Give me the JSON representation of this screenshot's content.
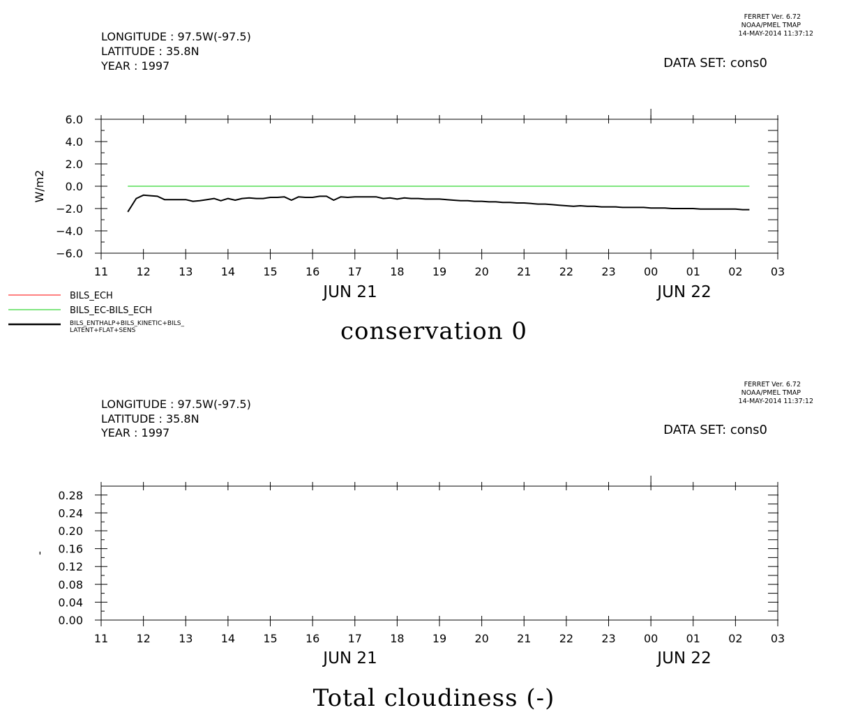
{
  "ferret": {
    "line1": "FERRET Ver. 6.72",
    "line2": "NOAA/PMEL TMAP",
    "line3": "14-MAY-2014 11:37:12"
  },
  "panels": [
    {
      "longitude": "LONGITUDE : 97.5W(-97.5)",
      "latitude": "LATITUDE : 35.8N",
      "year": "YEAR : 1997",
      "dataset": "DATA SET: cons0",
      "title": "conservation 0"
    },
    {
      "longitude": "LONGITUDE : 97.5W(-97.5)",
      "latitude": "LATITUDE : 35.8N",
      "year": "YEAR : 1997",
      "dataset": "DATA SET: cons0",
      "title": "Total cloudiness (-)"
    }
  ],
  "legend": [
    {
      "label": "BILS_ECH",
      "color": "#ff0000"
    },
    {
      "label": "BILS_EC-BILS_ECH",
      "color": "#00cc00"
    },
    {
      "label": "BILS_ENTHALP+BILS_KINETIC+BILS_",
      "label2": "LATENT+FLAT+SENS",
      "color": "#000000"
    }
  ],
  "chart_data": [
    {
      "type": "line",
      "title": "conservation 0",
      "xlabel": "",
      "ylabel": "W/m2",
      "x_unit": "hour of JUN 21 1997 (continuing into JUN 22)",
      "xlim": [
        11,
        27
      ],
      "x_ticks": [
        "11",
        "12",
        "13",
        "14",
        "15",
        "16",
        "17",
        "18",
        "19",
        "20",
        "21",
        "22",
        "23",
        "00",
        "01",
        "02",
        "03"
      ],
      "date_labels": [
        {
          "text": "JUN 21",
          "at": 17
        },
        {
          "text": "JUN 22",
          "at": 25
        }
      ],
      "ylim": [
        -6,
        6
      ],
      "y_ticks": [
        "6.0",
        "4.0",
        "2.0",
        "0.0",
        "-2.0",
        "-4.0",
        "-6.0"
      ],
      "y_tick_values": [
        6,
        4,
        2,
        0,
        -2,
        -4,
        -6
      ],
      "grid": false,
      "series": [
        {
          "name": "BILS_EC-BILS_ECH",
          "color": "#00cc00",
          "width": 1,
          "x": [
            11.63,
            26.33
          ],
          "y": [
            0.0,
            0.0
          ]
        },
        {
          "name": "BILS_ENTHALP+BILS_KINETIC+BILS_LATENT+FLAT+SENS",
          "color": "#000000",
          "width": 2,
          "x": [
            11.63,
            11.83,
            12.0,
            12.17,
            12.33,
            12.5,
            12.67,
            12.83,
            13.0,
            13.17,
            13.33,
            13.5,
            13.67,
            13.83,
            14.0,
            14.17,
            14.33,
            14.5,
            14.67,
            14.83,
            15.0,
            15.17,
            15.33,
            15.5,
            15.67,
            15.83,
            16.0,
            16.17,
            16.33,
            16.5,
            16.67,
            16.83,
            17.0,
            17.17,
            17.33,
            17.5,
            17.67,
            17.83,
            18.0,
            18.17,
            18.33,
            18.5,
            18.67,
            18.83,
            19.0,
            19.17,
            19.33,
            19.5,
            19.67,
            19.83,
            20.0,
            20.17,
            20.33,
            20.5,
            20.67,
            20.83,
            21.0,
            21.17,
            21.33,
            21.5,
            21.67,
            21.83,
            22.0,
            22.17,
            22.33,
            22.5,
            22.67,
            22.83,
            23.0,
            23.17,
            23.33,
            23.5,
            23.67,
            23.83,
            24.0,
            24.17,
            24.33,
            24.5,
            24.67,
            24.83,
            25.0,
            25.17,
            25.33,
            25.5,
            25.67,
            25.83,
            26.0,
            26.17,
            26.33
          ],
          "y": [
            -2.3,
            -1.1,
            -0.8,
            -0.85,
            -0.9,
            -1.2,
            -1.2,
            -1.2,
            -1.2,
            -1.35,
            -1.3,
            -1.2,
            -1.1,
            -1.3,
            -1.1,
            -1.25,
            -1.1,
            -1.05,
            -1.1,
            -1.1,
            -1.0,
            -1.0,
            -0.95,
            -1.25,
            -0.95,
            -1.0,
            -1.0,
            -0.9,
            -0.9,
            -1.25,
            -0.95,
            -1.0,
            -0.95,
            -0.95,
            -0.95,
            -0.95,
            -1.1,
            -1.05,
            -1.15,
            -1.05,
            -1.1,
            -1.1,
            -1.15,
            -1.15,
            -1.15,
            -1.2,
            -1.25,
            -1.3,
            -1.3,
            -1.35,
            -1.35,
            -1.4,
            -1.4,
            -1.45,
            -1.45,
            -1.5,
            -1.5,
            -1.55,
            -1.6,
            -1.6,
            -1.65,
            -1.7,
            -1.75,
            -1.8,
            -1.75,
            -1.8,
            -1.8,
            -1.85,
            -1.85,
            -1.85,
            -1.9,
            -1.9,
            -1.9,
            -1.9,
            -1.95,
            -1.95,
            -1.95,
            -2.0,
            -2.0,
            -2.0,
            -2.0,
            -2.05,
            -2.05,
            -2.05,
            -2.05,
            -2.05,
            -2.05,
            -2.1,
            -2.1
          ]
        }
      ]
    },
    {
      "type": "line",
      "title": "Total cloudiness (-)",
      "xlabel": "",
      "ylabel": "-",
      "x_unit": "hour of JUN 21 1997 (continuing into JUN 22)",
      "xlim": [
        11,
        27
      ],
      "x_ticks": [
        "11",
        "12",
        "13",
        "14",
        "15",
        "16",
        "17",
        "18",
        "19",
        "20",
        "21",
        "22",
        "23",
        "00",
        "01",
        "02",
        "03"
      ],
      "date_labels": [
        {
          "text": "JUN 21",
          "at": 17
        },
        {
          "text": "JUN 22",
          "at": 25
        }
      ],
      "ylim": [
        0,
        0.3
      ],
      "y_ticks": [
        "0.28",
        "0.24",
        "0.20",
        "0.16",
        "0.12",
        "0.08",
        "0.04",
        "0.00"
      ],
      "y_tick_values": [
        0.28,
        0.24,
        0.2,
        0.16,
        0.12,
        0.08,
        0.04,
        0.0
      ],
      "grid": false,
      "series": []
    }
  ]
}
